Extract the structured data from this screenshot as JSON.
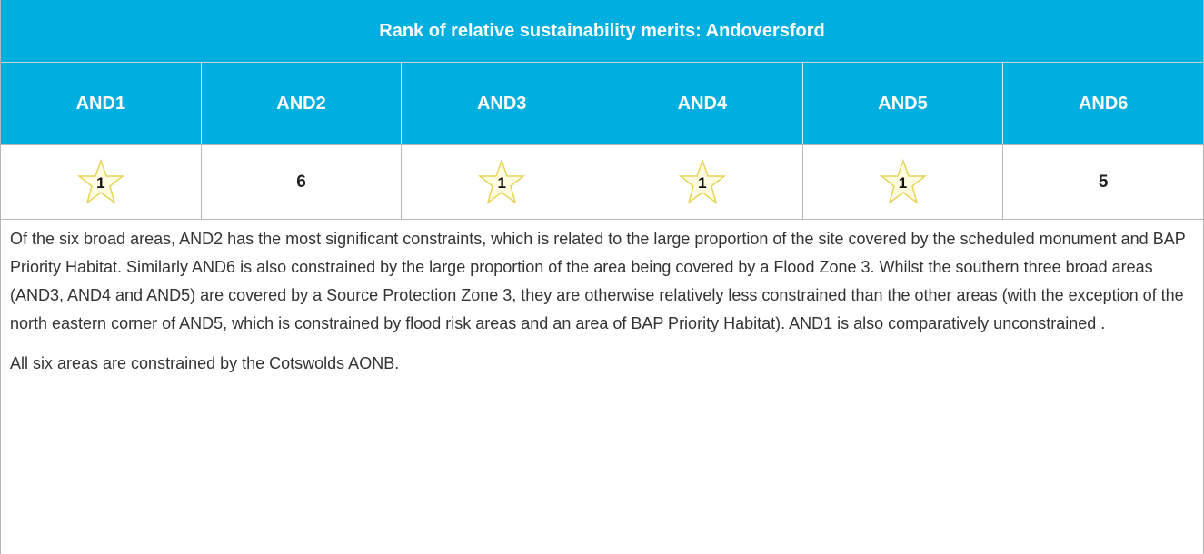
{
  "table": {
    "title": "Rank of relative sustainability merits: Andoversford",
    "columns": [
      "AND1",
      "AND2",
      "AND3",
      "AND4",
      "AND5",
      "AND6"
    ],
    "ranks": [
      {
        "rank": 1,
        "star": true
      },
      {
        "rank": 6,
        "star": false
      },
      {
        "rank": 1,
        "star": true
      },
      {
        "rank": 1,
        "star": true
      },
      {
        "rank": 1,
        "star": true
      },
      {
        "rank": 5,
        "star": false
      }
    ],
    "paragraphs": [
      "Of the six broad areas, AND2 has the most significant constraints, which is related to the large proportion of the site covered by the scheduled monument  and BAP Priority Habitat.  Similarly AND6 is also constrained by the large proportion of the area being covered by a Flood Zone 3.  Whilst the southern three broad areas (AND3, AND4 and AND5) are covered by a Source Protection Zone 3, they are otherwise relatively less constrained  than the other areas (with the exception of the north eastern corner of AND5, which is constrained by flood risk areas and an area of BAP Priority Habitat).  AND1 is also comparatively unconstrained .",
      "All six areas are constrained by the Cotswolds AONB."
    ]
  }
}
